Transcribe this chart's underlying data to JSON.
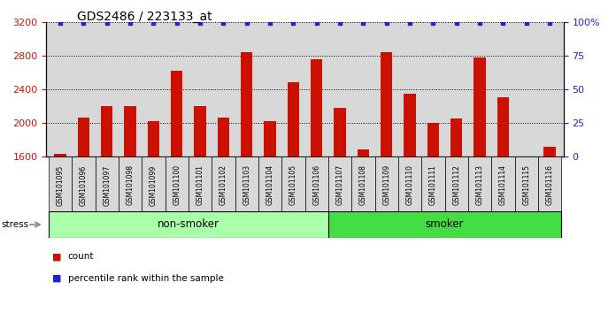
{
  "title": "GDS2486 / 223133_at",
  "samples": [
    "GSM101095",
    "GSM101096",
    "GSM101097",
    "GSM101098",
    "GSM101099",
    "GSM101100",
    "GSM101101",
    "GSM101102",
    "GSM101103",
    "GSM101104",
    "GSM101105",
    "GSM101106",
    "GSM101107",
    "GSM101108",
    "GSM101109",
    "GSM101110",
    "GSM101111",
    "GSM101112",
    "GSM101113",
    "GSM101114",
    "GSM101115",
    "GSM101116"
  ],
  "counts": [
    1630,
    2060,
    2200,
    2200,
    2020,
    2620,
    2200,
    2060,
    2840,
    2020,
    2480,
    2760,
    2180,
    1680,
    2840,
    2350,
    2000,
    2050,
    2780,
    2300,
    1590,
    1720
  ],
  "percentile_ranks": [
    99,
    99,
    99,
    99,
    99,
    99,
    99,
    99,
    99,
    99,
    99,
    99,
    99,
    99,
    99,
    99,
    99,
    99,
    99,
    99,
    99,
    99
  ],
  "non_smoker_count": 12,
  "smoker_count": 10,
  "ymin": 1600,
  "ymax": 3200,
  "yticks": [
    1600,
    2000,
    2400,
    2800,
    3200
  ],
  "ytick_labels": [
    "1600",
    "2000",
    "2400",
    "2800",
    "3200"
  ],
  "right_yticks": [
    0,
    25,
    50,
    75,
    100
  ],
  "right_ytick_labels": [
    "0",
    "25",
    "50",
    "75",
    "100%"
  ],
  "bar_color": "#cc1100",
  "dot_color": "#2222cc",
  "non_smoker_color": "#aaffaa",
  "smoker_color": "#44dd44",
  "label_color_left": "#cc1100",
  "label_color_right": "#2222cc",
  "bg_color": "#d8d8d8",
  "bar_width": 0.5,
  "stress_label": "stress",
  "non_smoker_label": "non-smoker",
  "smoker_label": "smoker",
  "legend_count_label": "count",
  "legend_pct_label": "percentile rank within the sample"
}
